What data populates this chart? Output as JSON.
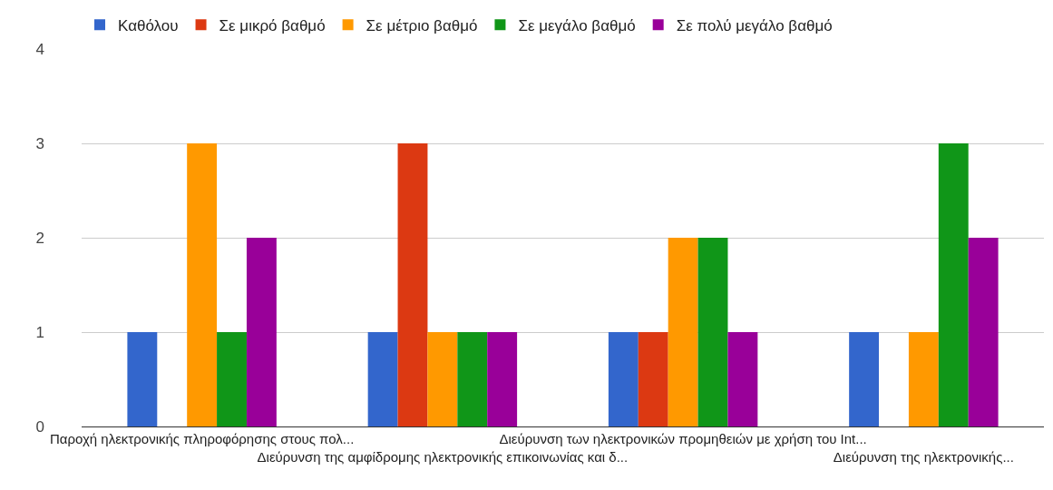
{
  "chart_data": {
    "type": "bar",
    "categories": [
      "Παροχή ηλεκτρονικής πληροφόρησης στους πολ...",
      "Διεύρυνση της αμφίδρομης ηλεκτρονικής επικοινωνίας και δ...",
      "Διεύρυνση των ηλεκτρονικών προμηθειών με χρήση του Int...",
      "Διεύρυνση της ηλεκτρονικής..."
    ],
    "series": [
      {
        "name": "Καθόλου",
        "color": "#3366cc",
        "values": [
          1,
          1,
          1,
          1
        ]
      },
      {
        "name": "Σε μικρό βαθμό",
        "color": "#dc3912",
        "values": [
          0,
          3,
          1,
          0
        ]
      },
      {
        "name": "Σε μέτριο βαθμό",
        "color": "#ff9900",
        "values": [
          3,
          1,
          2,
          1
        ]
      },
      {
        "name": "Σε μεγάλο βαθμό",
        "color": "#109618",
        "values": [
          1,
          1,
          2,
          3
        ]
      },
      {
        "name": "Σε πολύ μεγάλο βαθμό",
        "color": "#990099",
        "values": [
          2,
          1,
          1,
          2
        ]
      }
    ],
    "ylim": [
      0,
      4
    ],
    "yticks": [
      0,
      1,
      2,
      3,
      4
    ],
    "grid": "y",
    "legend": "top"
  }
}
